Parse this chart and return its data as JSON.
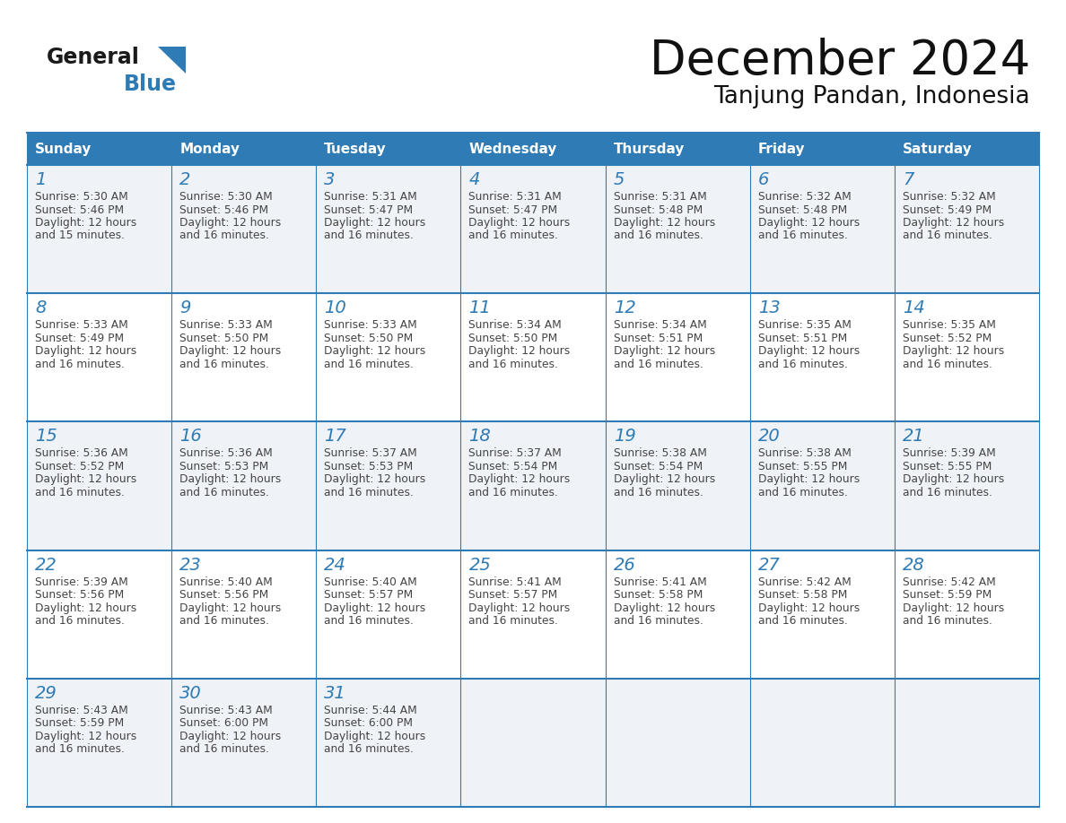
{
  "title": "December 2024",
  "subtitle": "Tanjung Pandan, Indonesia",
  "header_bg_color": "#2e7bb5",
  "header_text_color": "#ffffff",
  "day_names": [
    "Sunday",
    "Monday",
    "Tuesday",
    "Wednesday",
    "Thursday",
    "Friday",
    "Saturday"
  ],
  "row_bg_colors": [
    "#eff3f8",
    "#ffffff",
    "#eff3f8",
    "#ffffff",
    "#eff3f8"
  ],
  "cell_border_color": "#2e7bb5",
  "day_number_color": "#2e7bb5",
  "text_color": "#444444",
  "logo_general_color": "#1a1a1a",
  "logo_blue_color": "#2e7bb5",
  "weeks": [
    [
      {
        "day": 1,
        "sunrise": "5:30 AM",
        "sunset": "5:46 PM",
        "daylight": "12 hours and 15 minutes"
      },
      {
        "day": 2,
        "sunrise": "5:30 AM",
        "sunset": "5:46 PM",
        "daylight": "12 hours and 16 minutes"
      },
      {
        "day": 3,
        "sunrise": "5:31 AM",
        "sunset": "5:47 PM",
        "daylight": "12 hours and 16 minutes"
      },
      {
        "day": 4,
        "sunrise": "5:31 AM",
        "sunset": "5:47 PM",
        "daylight": "12 hours and 16 minutes"
      },
      {
        "day": 5,
        "sunrise": "5:31 AM",
        "sunset": "5:48 PM",
        "daylight": "12 hours and 16 minutes"
      },
      {
        "day": 6,
        "sunrise": "5:32 AM",
        "sunset": "5:48 PM",
        "daylight": "12 hours and 16 minutes"
      },
      {
        "day": 7,
        "sunrise": "5:32 AM",
        "sunset": "5:49 PM",
        "daylight": "12 hours and 16 minutes"
      }
    ],
    [
      {
        "day": 8,
        "sunrise": "5:33 AM",
        "sunset": "5:49 PM",
        "daylight": "12 hours and 16 minutes"
      },
      {
        "day": 9,
        "sunrise": "5:33 AM",
        "sunset": "5:50 PM",
        "daylight": "12 hours and 16 minutes"
      },
      {
        "day": 10,
        "sunrise": "5:33 AM",
        "sunset": "5:50 PM",
        "daylight": "12 hours and 16 minutes"
      },
      {
        "day": 11,
        "sunrise": "5:34 AM",
        "sunset": "5:50 PM",
        "daylight": "12 hours and 16 minutes"
      },
      {
        "day": 12,
        "sunrise": "5:34 AM",
        "sunset": "5:51 PM",
        "daylight": "12 hours and 16 minutes"
      },
      {
        "day": 13,
        "sunrise": "5:35 AM",
        "sunset": "5:51 PM",
        "daylight": "12 hours and 16 minutes"
      },
      {
        "day": 14,
        "sunrise": "5:35 AM",
        "sunset": "5:52 PM",
        "daylight": "12 hours and 16 minutes"
      }
    ],
    [
      {
        "day": 15,
        "sunrise": "5:36 AM",
        "sunset": "5:52 PM",
        "daylight": "12 hours and 16 minutes"
      },
      {
        "day": 16,
        "sunrise": "5:36 AM",
        "sunset": "5:53 PM",
        "daylight": "12 hours and 16 minutes"
      },
      {
        "day": 17,
        "sunrise": "5:37 AM",
        "sunset": "5:53 PM",
        "daylight": "12 hours and 16 minutes"
      },
      {
        "day": 18,
        "sunrise": "5:37 AM",
        "sunset": "5:54 PM",
        "daylight": "12 hours and 16 minutes"
      },
      {
        "day": 19,
        "sunrise": "5:38 AM",
        "sunset": "5:54 PM",
        "daylight": "12 hours and 16 minutes"
      },
      {
        "day": 20,
        "sunrise": "5:38 AM",
        "sunset": "5:55 PM",
        "daylight": "12 hours and 16 minutes"
      },
      {
        "day": 21,
        "sunrise": "5:39 AM",
        "sunset": "5:55 PM",
        "daylight": "12 hours and 16 minutes"
      }
    ],
    [
      {
        "day": 22,
        "sunrise": "5:39 AM",
        "sunset": "5:56 PM",
        "daylight": "12 hours and 16 minutes"
      },
      {
        "day": 23,
        "sunrise": "5:40 AM",
        "sunset": "5:56 PM",
        "daylight": "12 hours and 16 minutes"
      },
      {
        "day": 24,
        "sunrise": "5:40 AM",
        "sunset": "5:57 PM",
        "daylight": "12 hours and 16 minutes"
      },
      {
        "day": 25,
        "sunrise": "5:41 AM",
        "sunset": "5:57 PM",
        "daylight": "12 hours and 16 minutes"
      },
      {
        "day": 26,
        "sunrise": "5:41 AM",
        "sunset": "5:58 PM",
        "daylight": "12 hours and 16 minutes"
      },
      {
        "day": 27,
        "sunrise": "5:42 AM",
        "sunset": "5:58 PM",
        "daylight": "12 hours and 16 minutes"
      },
      {
        "day": 28,
        "sunrise": "5:42 AM",
        "sunset": "5:59 PM",
        "daylight": "12 hours and 16 minutes"
      }
    ],
    [
      {
        "day": 29,
        "sunrise": "5:43 AM",
        "sunset": "5:59 PM",
        "daylight": "12 hours and 16 minutes"
      },
      {
        "day": 30,
        "sunrise": "5:43 AM",
        "sunset": "6:00 PM",
        "daylight": "12 hours and 16 minutes"
      },
      {
        "day": 31,
        "sunrise": "5:44 AM",
        "sunset": "6:00 PM",
        "daylight": "12 hours and 16 minutes"
      },
      null,
      null,
      null,
      null
    ]
  ]
}
